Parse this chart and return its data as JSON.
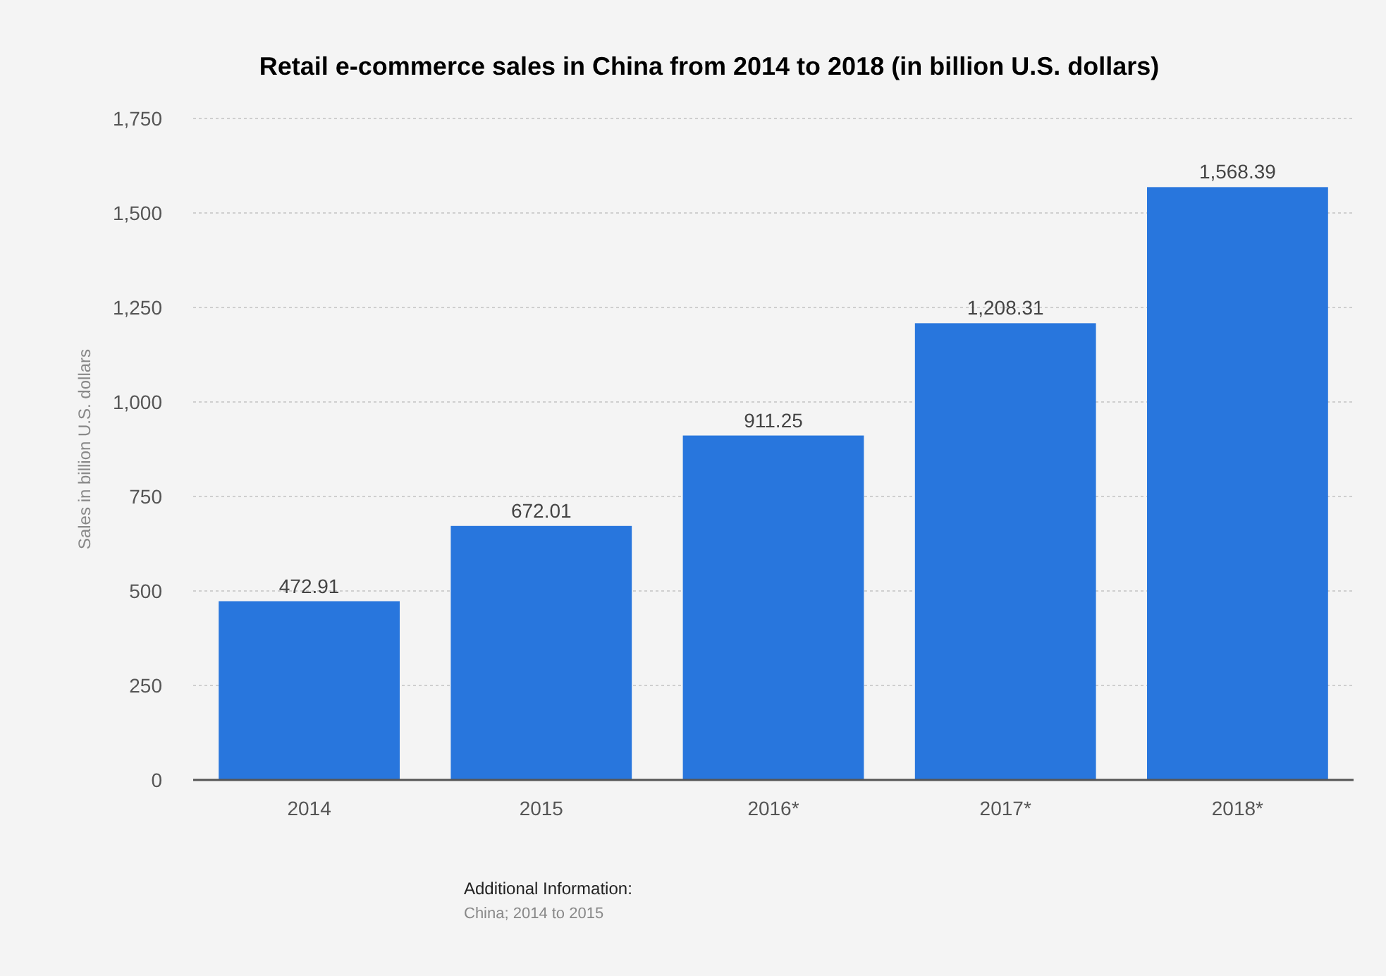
{
  "chart_data": {
    "type": "bar",
    "title": "Retail e-commerce sales in China from 2014 to 2018 (in billion U.S. dollars)",
    "ylabel": "Sales in billion U.S. dollars",
    "categories": [
      "2014",
      "2015",
      "2016*",
      "2017*",
      "2018*"
    ],
    "values": [
      472.91,
      672.01,
      911.25,
      1208.31,
      1568.39
    ],
    "color": "#2876dd",
    "value_labels": [
      "472.91",
      "672.01",
      "911.25",
      "1,208.31",
      "1,568.39"
    ],
    "ylim": [
      0,
      1750
    ],
    "yticks": [
      0,
      {
        "value": 250,
        "label": "250"
      },
      {
        "value": 500,
        "label": "500"
      },
      {
        "value": 750,
        "label": "750"
      },
      {
        "value": 1000,
        "label": "1,000"
      },
      {
        "value": 1250,
        "label": "1,250"
      },
      {
        "value": 1500,
        "label": "1,500"
      },
      {
        "value": 1750,
        "label": "1,750"
      }
    ],
    "grid": "y",
    "annotations": [
      "Additional Information:",
      "China; 2014 to 2015"
    ]
  }
}
